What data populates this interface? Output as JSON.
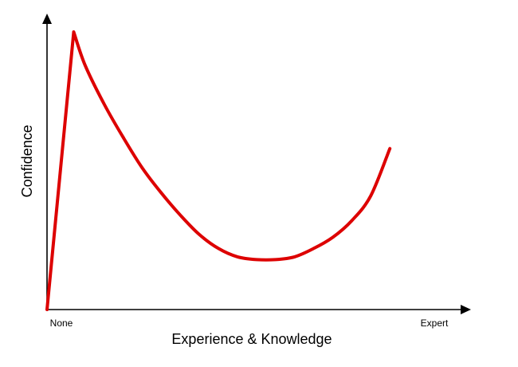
{
  "chart_data": {
    "type": "line",
    "title": "",
    "xlabel": "Experience & Knowledge",
    "ylabel": "Confidence",
    "x_tick_labels": [
      "None",
      "Expert"
    ],
    "xlim": [
      0,
      100
    ],
    "ylim": [
      0,
      100
    ],
    "grid": false,
    "legend": "none",
    "series": [
      {
        "color": "#dd0000",
        "x": [
          0,
          7,
          10,
          15,
          20,
          25,
          30,
          35,
          40,
          45,
          50,
          55,
          60,
          65,
          70,
          75,
          80,
          85,
          90
        ],
        "y": [
          0,
          100,
          88,
          74,
          62,
          51,
          42,
          34,
          27,
          22,
          19,
          18,
          18,
          19,
          22,
          26,
          32,
          41,
          58
        ]
      }
    ]
  }
}
